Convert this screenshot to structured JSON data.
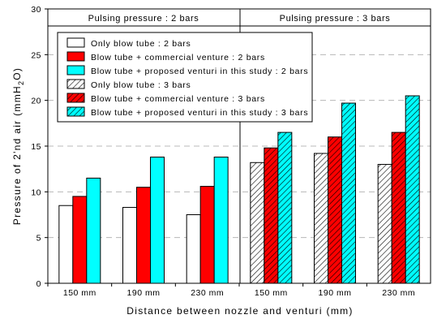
{
  "chart_data": {
    "type": "bar",
    "title": "",
    "xlabel": "Distance between nozzle and venturi (mm)",
    "ylabel_parts": [
      "Pressure of 2'nd air (mmH",
      "2",
      "O)"
    ],
    "ylim": [
      0,
      30
    ],
    "yticks": [
      "0",
      "5",
      "10",
      "15",
      "20",
      "25",
      "30"
    ],
    "grid": "dashed horizontal at 5, 10, 15, 20, 25",
    "panels": [
      {
        "label": "Pulsing pressure : 2 bars",
        "categories": [
          "150 mm",
          "190 mm",
          "230 mm"
        ],
        "series": [
          {
            "name": "Only blow tube : 2 bars",
            "color": "#ffffff",
            "hatch": false,
            "values": [
              8.5,
              8.3,
              7.5
            ]
          },
          {
            "name": "Blow tube + commercial venture : 2 bars",
            "color": "#ff0000",
            "hatch": false,
            "values": [
              9.5,
              10.5,
              10.6
            ]
          },
          {
            "name": "Blow tube + proposed venturi in this study : 2 bars",
            "color": "#00ffff",
            "hatch": false,
            "values": [
              11.5,
              13.8,
              13.8
            ]
          }
        ]
      },
      {
        "label": "Pulsing pressure : 3 bars",
        "categories": [
          "150 mm",
          "190 mm",
          "230 mm"
        ],
        "series": [
          {
            "name": "Only blow tube : 3 bars",
            "color": "#ffffff",
            "hatch": true,
            "values": [
              13.2,
              14.2,
              13.0
            ]
          },
          {
            "name": "Blow tube + commercial venture : 3 bars",
            "color": "#ff0000",
            "hatch": true,
            "values": [
              14.8,
              16.0,
              16.5
            ]
          },
          {
            "name": "Blow tube + proposed venturi in this study : 3 bars",
            "color": "#00ffff",
            "hatch": true,
            "values": [
              16.5,
              19.7,
              20.5
            ]
          }
        ]
      }
    ],
    "legend_placement": "top-left"
  }
}
